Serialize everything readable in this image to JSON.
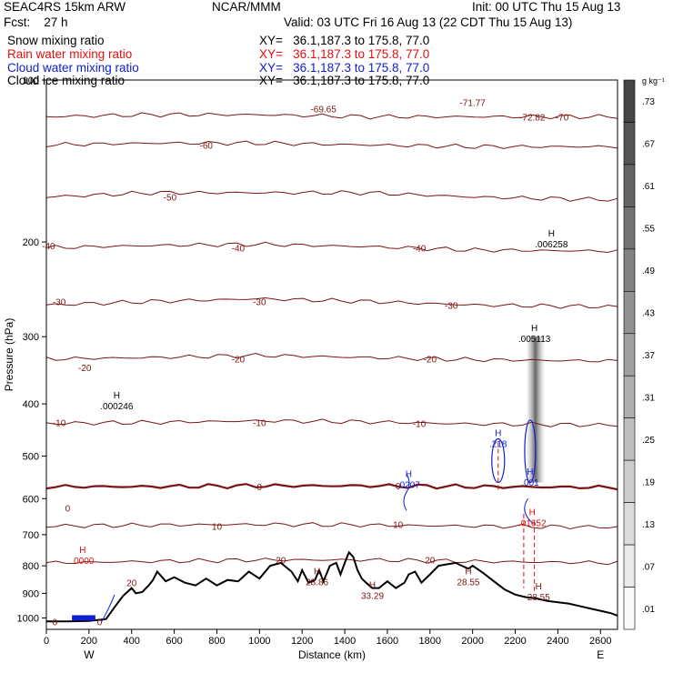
{
  "header": {
    "left1": "SEAC4RS 15km ARW",
    "left2": "Fcst:    27 h",
    "center1": "NCAR/MMM",
    "init": "Init: 00 UTC Thu 15 Aug 13",
    "valid": "Valid: 03 UTC Fri 16 Aug 13 (22 CDT Thu 15 Aug 13)"
  },
  "fields": [
    {
      "name": "Snow mixing ratio",
      "xy": "XY=   36.1,187.3 to 175.8, 77.0",
      "color": "#000000"
    },
    {
      "name": "Rain water mixing ratio",
      "xy": "XY=   36.1,187.3 to 175.8, 77.0",
      "color": "#e01010"
    },
    {
      "name": "Cloud water mixing ratio",
      "xy": "XY=   36.1,187.3 to 175.8, 77.0",
      "color": "#1020d0"
    },
    {
      "name": "Cloud ice mixing ratio",
      "xy": "XY=   36.1,187.3 to 175.8, 77.0",
      "color": "#000000"
    }
  ],
  "colors": {
    "temp_contour": "#7a1414",
    "terrain": "#000000",
    "cloud": "#1020d0",
    "rain": "#e01010"
  },
  "chart_data": {
    "type": "contour",
    "xlabel": "Distance (km)",
    "ylabel": "Pressure (hPa)",
    "xlim": [
      0,
      2680
    ],
    "ylim": [
      1050,
      100
    ],
    "y_scale": "log",
    "x_ticks": [
      0,
      200,
      400,
      600,
      800,
      1000,
      1200,
      1400,
      1600,
      1800,
      2000,
      2200,
      2400,
      2600
    ],
    "y_ticks": [
      100,
      200,
      300,
      400,
      500,
      600,
      700,
      800,
      900,
      1000
    ],
    "x_endpoints": {
      "left": "W",
      "right": "E"
    },
    "colorbar": {
      "unit": "g kg⁻¹",
      "labels": [
        ".73",
        ".67",
        ".61",
        ".55",
        ".49",
        ".43",
        ".37",
        ".31",
        ".25",
        ".19",
        ".13",
        ".07",
        ".01"
      ]
    },
    "temperature_contours": [
      {
        "label": "-70",
        "value": -70,
        "p": [
          117,
          116,
          116,
          117,
          117,
          117
        ]
      },
      {
        "label": "-60",
        "value": -60,
        "p": [
          132,
          131,
          131,
          132,
          133,
          133
        ]
      },
      {
        "label": "-50",
        "value": -50,
        "p": [
          165,
          162,
          162,
          162,
          165,
          167
        ]
      },
      {
        "label": "-40",
        "value": -40,
        "p": [
          205,
          203,
          202,
          204,
          207,
          208
        ]
      },
      {
        "label": "-30",
        "value": -30,
        "p": [
          262,
          258,
          255,
          258,
          262,
          264
        ]
      },
      {
        "label": "-20",
        "value": -20,
        "p": [
          330,
          328,
          325,
          328,
          331,
          333
        ]
      },
      {
        "label": "-10",
        "value": -10,
        "p": [
          435,
          433,
          430,
          432,
          436,
          438
        ]
      },
      {
        "label": "0",
        "value": 0,
        "p": [
          570,
          570,
          568,
          568,
          570,
          572
        ]
      },
      {
        "label": "10",
        "value": 10,
        "p": [
          675,
          672,
          670,
          672,
          675,
          678
        ]
      },
      {
        "label": "20",
        "value": 20,
        "p": [
          790,
          785,
          780,
          780,
          785,
          790
        ]
      }
    ],
    "temperature_contour_x": [
      0,
      500,
      1000,
      1500,
      2000,
      2680
    ],
    "terrain": {
      "x": [
        0,
        100,
        200,
        280,
        320,
        360,
        400,
        420,
        450,
        480,
        500,
        520,
        560,
        600,
        650,
        700,
        750,
        800,
        850,
        900,
        950,
        1000,
        1050,
        1100,
        1150,
        1180,
        1200,
        1230,
        1260,
        1280,
        1300,
        1330,
        1360,
        1380,
        1400,
        1420,
        1440,
        1460,
        1480,
        1500,
        1530,
        1560,
        1600,
        1640,
        1680,
        1700,
        1730,
        1760,
        1800,
        1840,
        1880,
        1920,
        1950,
        1980,
        2000,
        2050,
        2100,
        2150,
        2200,
        2250,
        2300,
        2350,
        2400,
        2450,
        2500,
        2550,
        2600,
        2650,
        2680
      ],
      "p": [
        1015,
        1015,
        1013,
        1005,
        955,
        910,
        880,
        900,
        895,
        870,
        850,
        820,
        855,
        840,
        860,
        870,
        845,
        870,
        850,
        855,
        820,
        845,
        800,
        790,
        820,
        855,
        815,
        860,
        850,
        815,
        855,
        800,
        790,
        830,
        790,
        755,
        770,
        815,
        845,
        860,
        880,
        880,
        855,
        880,
        860,
        830,
        820,
        860,
        830,
        800,
        795,
        790,
        800,
        810,
        800,
        825,
        855,
        885,
        905,
        915,
        920,
        930,
        935,
        940,
        950,
        960,
        970,
        980,
        990
      ]
    },
    "cloud_water_maxima": [
      {
        "label": ".0207",
        "km": 1700,
        "p": 560
      },
      {
        "label": ".218",
        "km": 2120,
        "p": 470
      },
      {
        "label": ".001",
        "km": 2270,
        "p": 555
      },
      {
        "label": ".01652",
        "km": 2280,
        "p": 660
      }
    ],
    "high_labels": [
      {
        "label": "H .000246",
        "km": 330,
        "p": 400
      },
      {
        "label": "H .005113",
        "km": 2290,
        "p": 300
      },
      {
        "label": "H .006258",
        "km": 2370,
        "p": 200
      },
      {
        "label": "H .0000",
        "km": 170,
        "p": 775
      },
      {
        "label": "H 28.86",
        "km": 1270,
        "p": 850
      },
      {
        "label": "H 33.29",
        "km": 1530,
        "p": 900
      },
      {
        "label": "H 28.55",
        "km": 1980,
        "p": 850
      },
      {
        "label": "H 28.55",
        "km": 2310,
        "p": 905
      }
    ],
    "inline_labels": [
      {
        "label": "-69.65",
        "km": 1300,
        "p": 113
      },
      {
        "label": "-71.77",
        "km": 2000,
        "p": 110
      },
      {
        "label": "-72.82",
        "km": 2280,
        "p": 117
      },
      {
        "label": "-70",
        "km": 2420,
        "p": 117
      },
      {
        "label": "-60",
        "km": 750,
        "p": 132
      },
      {
        "label": "-50",
        "km": 580,
        "p": 165
      },
      {
        "label": "-40",
        "km": 1750,
        "p": 205
      },
      {
        "label": "-40",
        "km": 900,
        "p": 205
      },
      {
        "label": "-40",
        "km": 10,
        "p": 203
      },
      {
        "label": "-30",
        "km": 1000,
        "p": 258
      },
      {
        "label": "-30",
        "km": 1900,
        "p": 262
      },
      {
        "label": "-30",
        "km": 60,
        "p": 258
      },
      {
        "label": "-20",
        "km": 900,
        "p": 330
      },
      {
        "label": "-20",
        "km": 1800,
        "p": 330
      },
      {
        "label": "-20",
        "km": 180,
        "p": 342
      },
      {
        "label": "-10",
        "km": 1750,
        "p": 435
      },
      {
        "label": "-10",
        "km": 1000,
        "p": 433
      },
      {
        "label": "-10",
        "km": 60,
        "p": 433
      },
      {
        "label": "0",
        "km": 1000,
        "p": 570
      },
      {
        "label": "0",
        "km": 1650,
        "p": 568
      },
      {
        "label": "0",
        "km": 100,
        "p": 625
      },
      {
        "label": "10",
        "km": 800,
        "p": 675
      },
      {
        "label": "10",
        "km": 1650,
        "p": 670
      },
      {
        "label": "20",
        "km": 1100,
        "p": 780
      },
      {
        "label": "20",
        "km": 1800,
        "p": 780
      },
      {
        "label": "20",
        "km": 400,
        "p": 860
      },
      {
        "label": "0",
        "km": 40,
        "p": 1015
      },
      {
        "label": "0",
        "km": 250,
        "p": 1015
      }
    ]
  }
}
